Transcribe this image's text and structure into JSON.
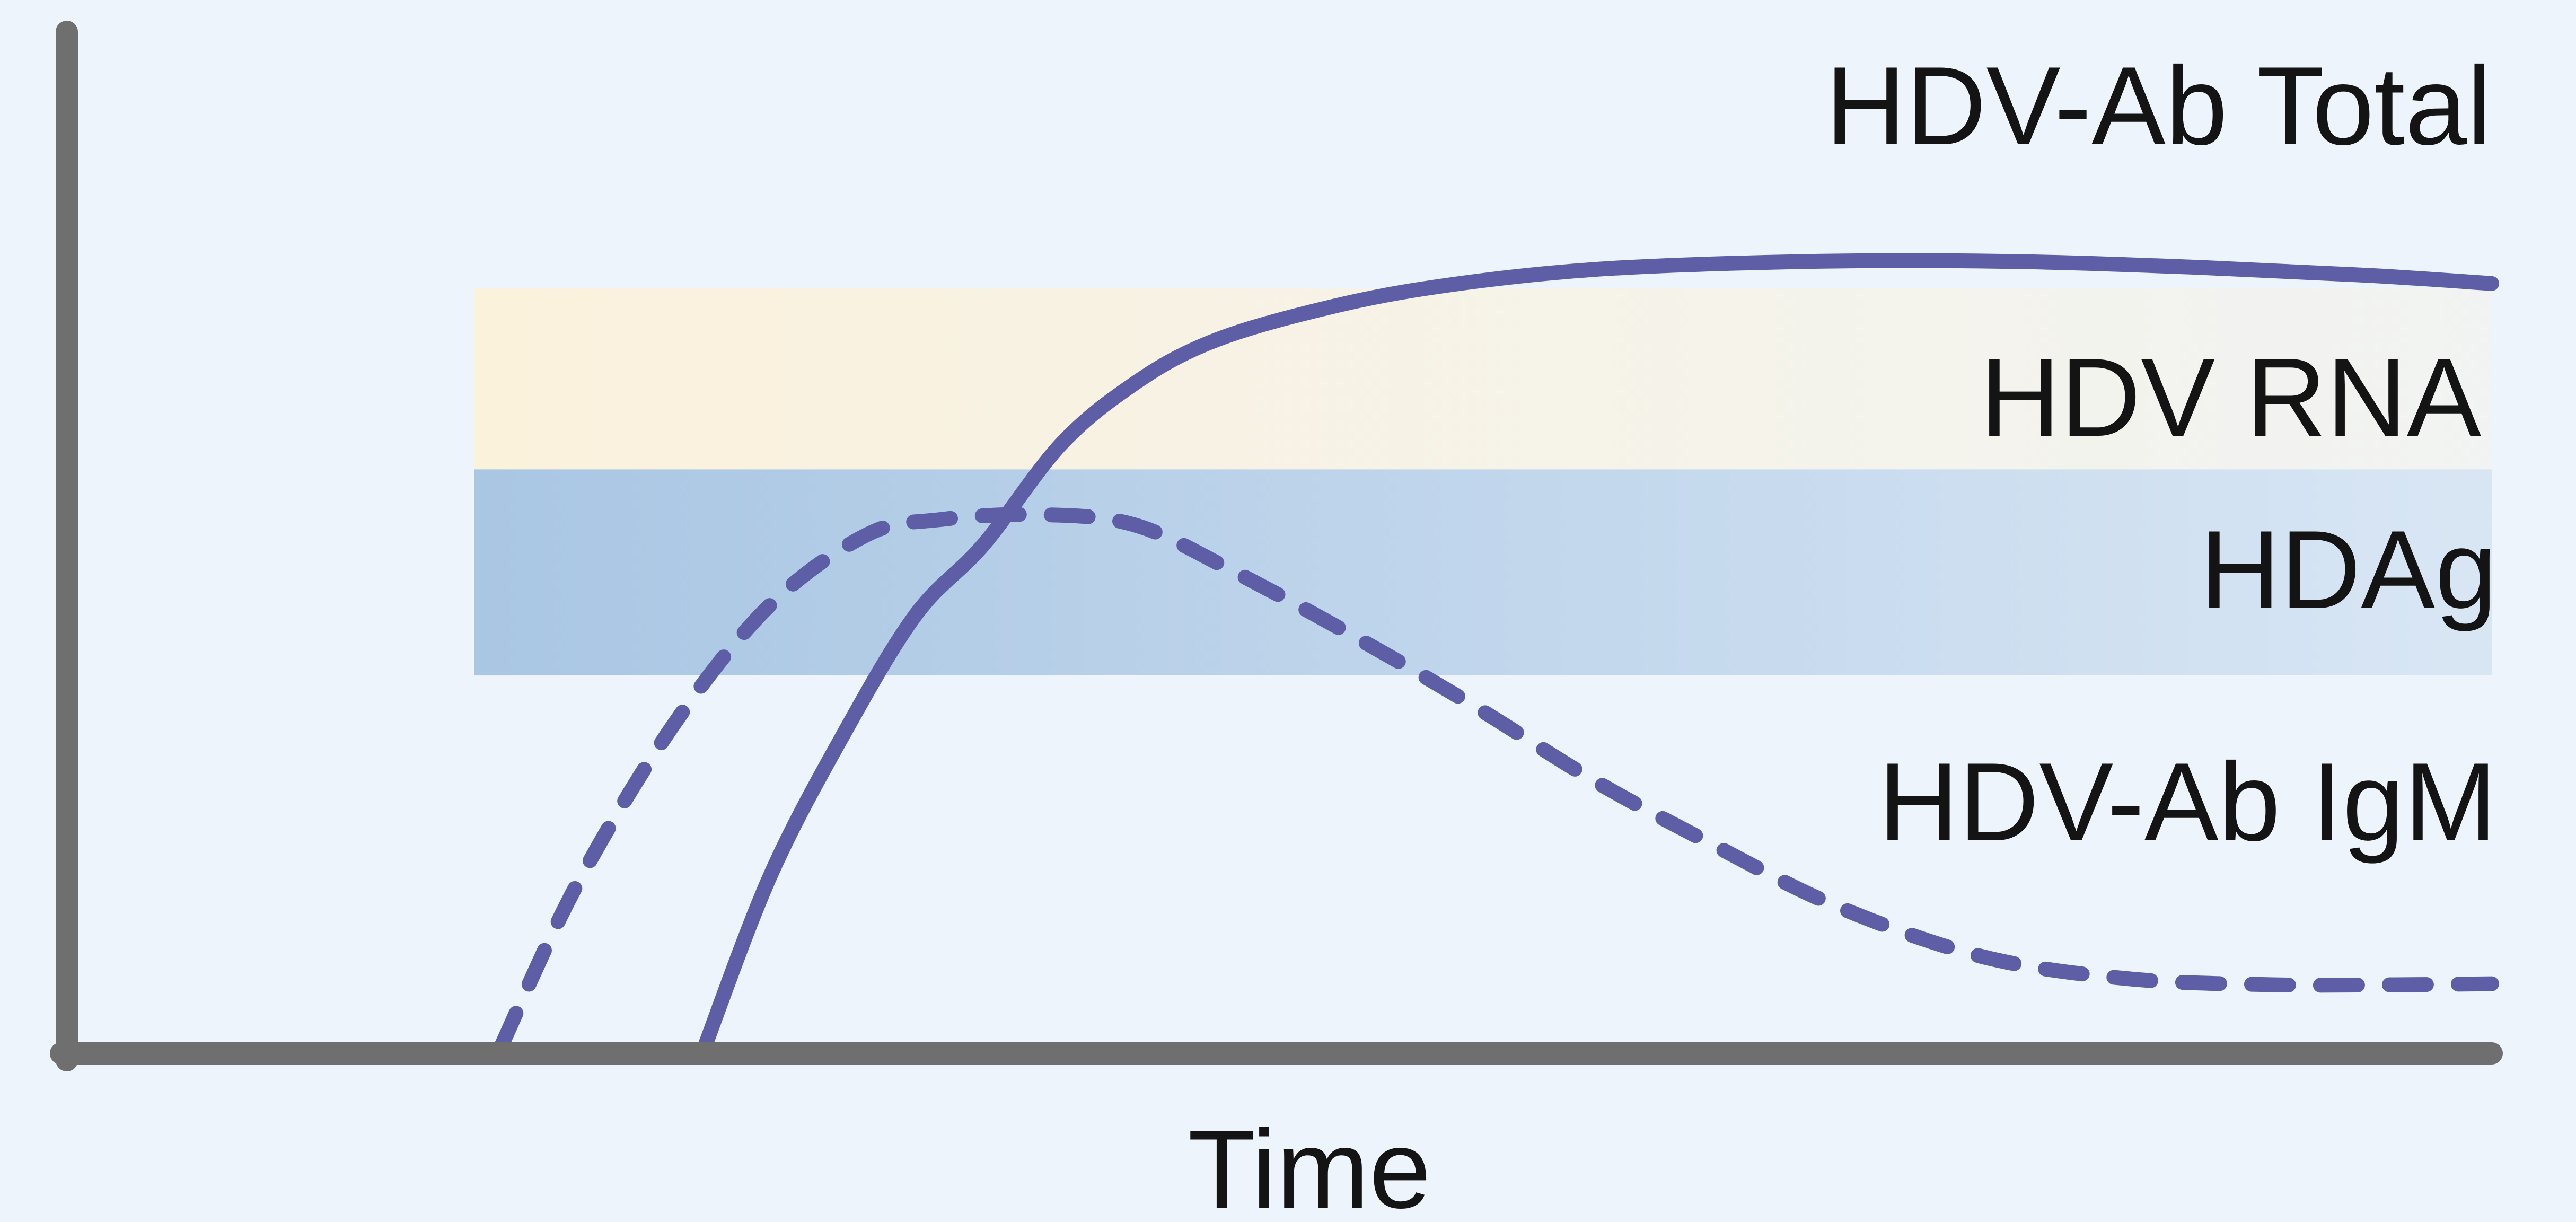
{
  "chart_data": {
    "type": "line",
    "title": "",
    "xlabel": "Time",
    "ylabel": "",
    "xlim": [
      0,
      100
    ],
    "ylim": [
      0,
      100
    ],
    "grid": false,
    "legend": "none",
    "background": "#edf4fc",
    "axis_color": "#6f6f6f",
    "bands": [
      {
        "name": "HDV RNA",
        "x_start": 16.8,
        "x_end": 100,
        "y_low": 57.5,
        "y_high": 75.5,
        "color": "#fbf2dc"
      },
      {
        "name": "HDAg",
        "x_start": 16.8,
        "x_end": 100,
        "y_low": 37,
        "y_high": 57.5,
        "color": "#a9c6e3"
      }
    ],
    "series": [
      {
        "name": "HDV-Ab Total",
        "style": "solid",
        "color": "#5d5ea6",
        "x": [
          26.3,
          29,
          32,
          35,
          37.8,
          41,
          44,
          47,
          51,
          56,
          63,
          72,
          80,
          88,
          95,
          100
        ],
        "y": [
          0,
          17,
          31,
          43,
          50,
          60,
          66,
          70,
          73,
          75.5,
          77.4,
          78.2,
          78.2,
          77.6,
          76.8,
          76
        ]
      },
      {
        "name": "HDV-Ab IgM",
        "style": "dashed",
        "color": "#5d5ea6",
        "x": [
          17.9,
          21,
          25,
          29,
          33,
          36,
          40,
          44,
          48,
          53,
          58,
          63,
          68,
          73,
          79,
          85,
          91,
          96,
          100
        ],
        "y": [
          0,
          16,
          32,
          44,
          51,
          52.5,
          53,
          52,
          47.5,
          41,
          34,
          26.5,
          20,
          14,
          9,
          6.8,
          6.2,
          6.2,
          6.3
        ]
      }
    ]
  }
}
